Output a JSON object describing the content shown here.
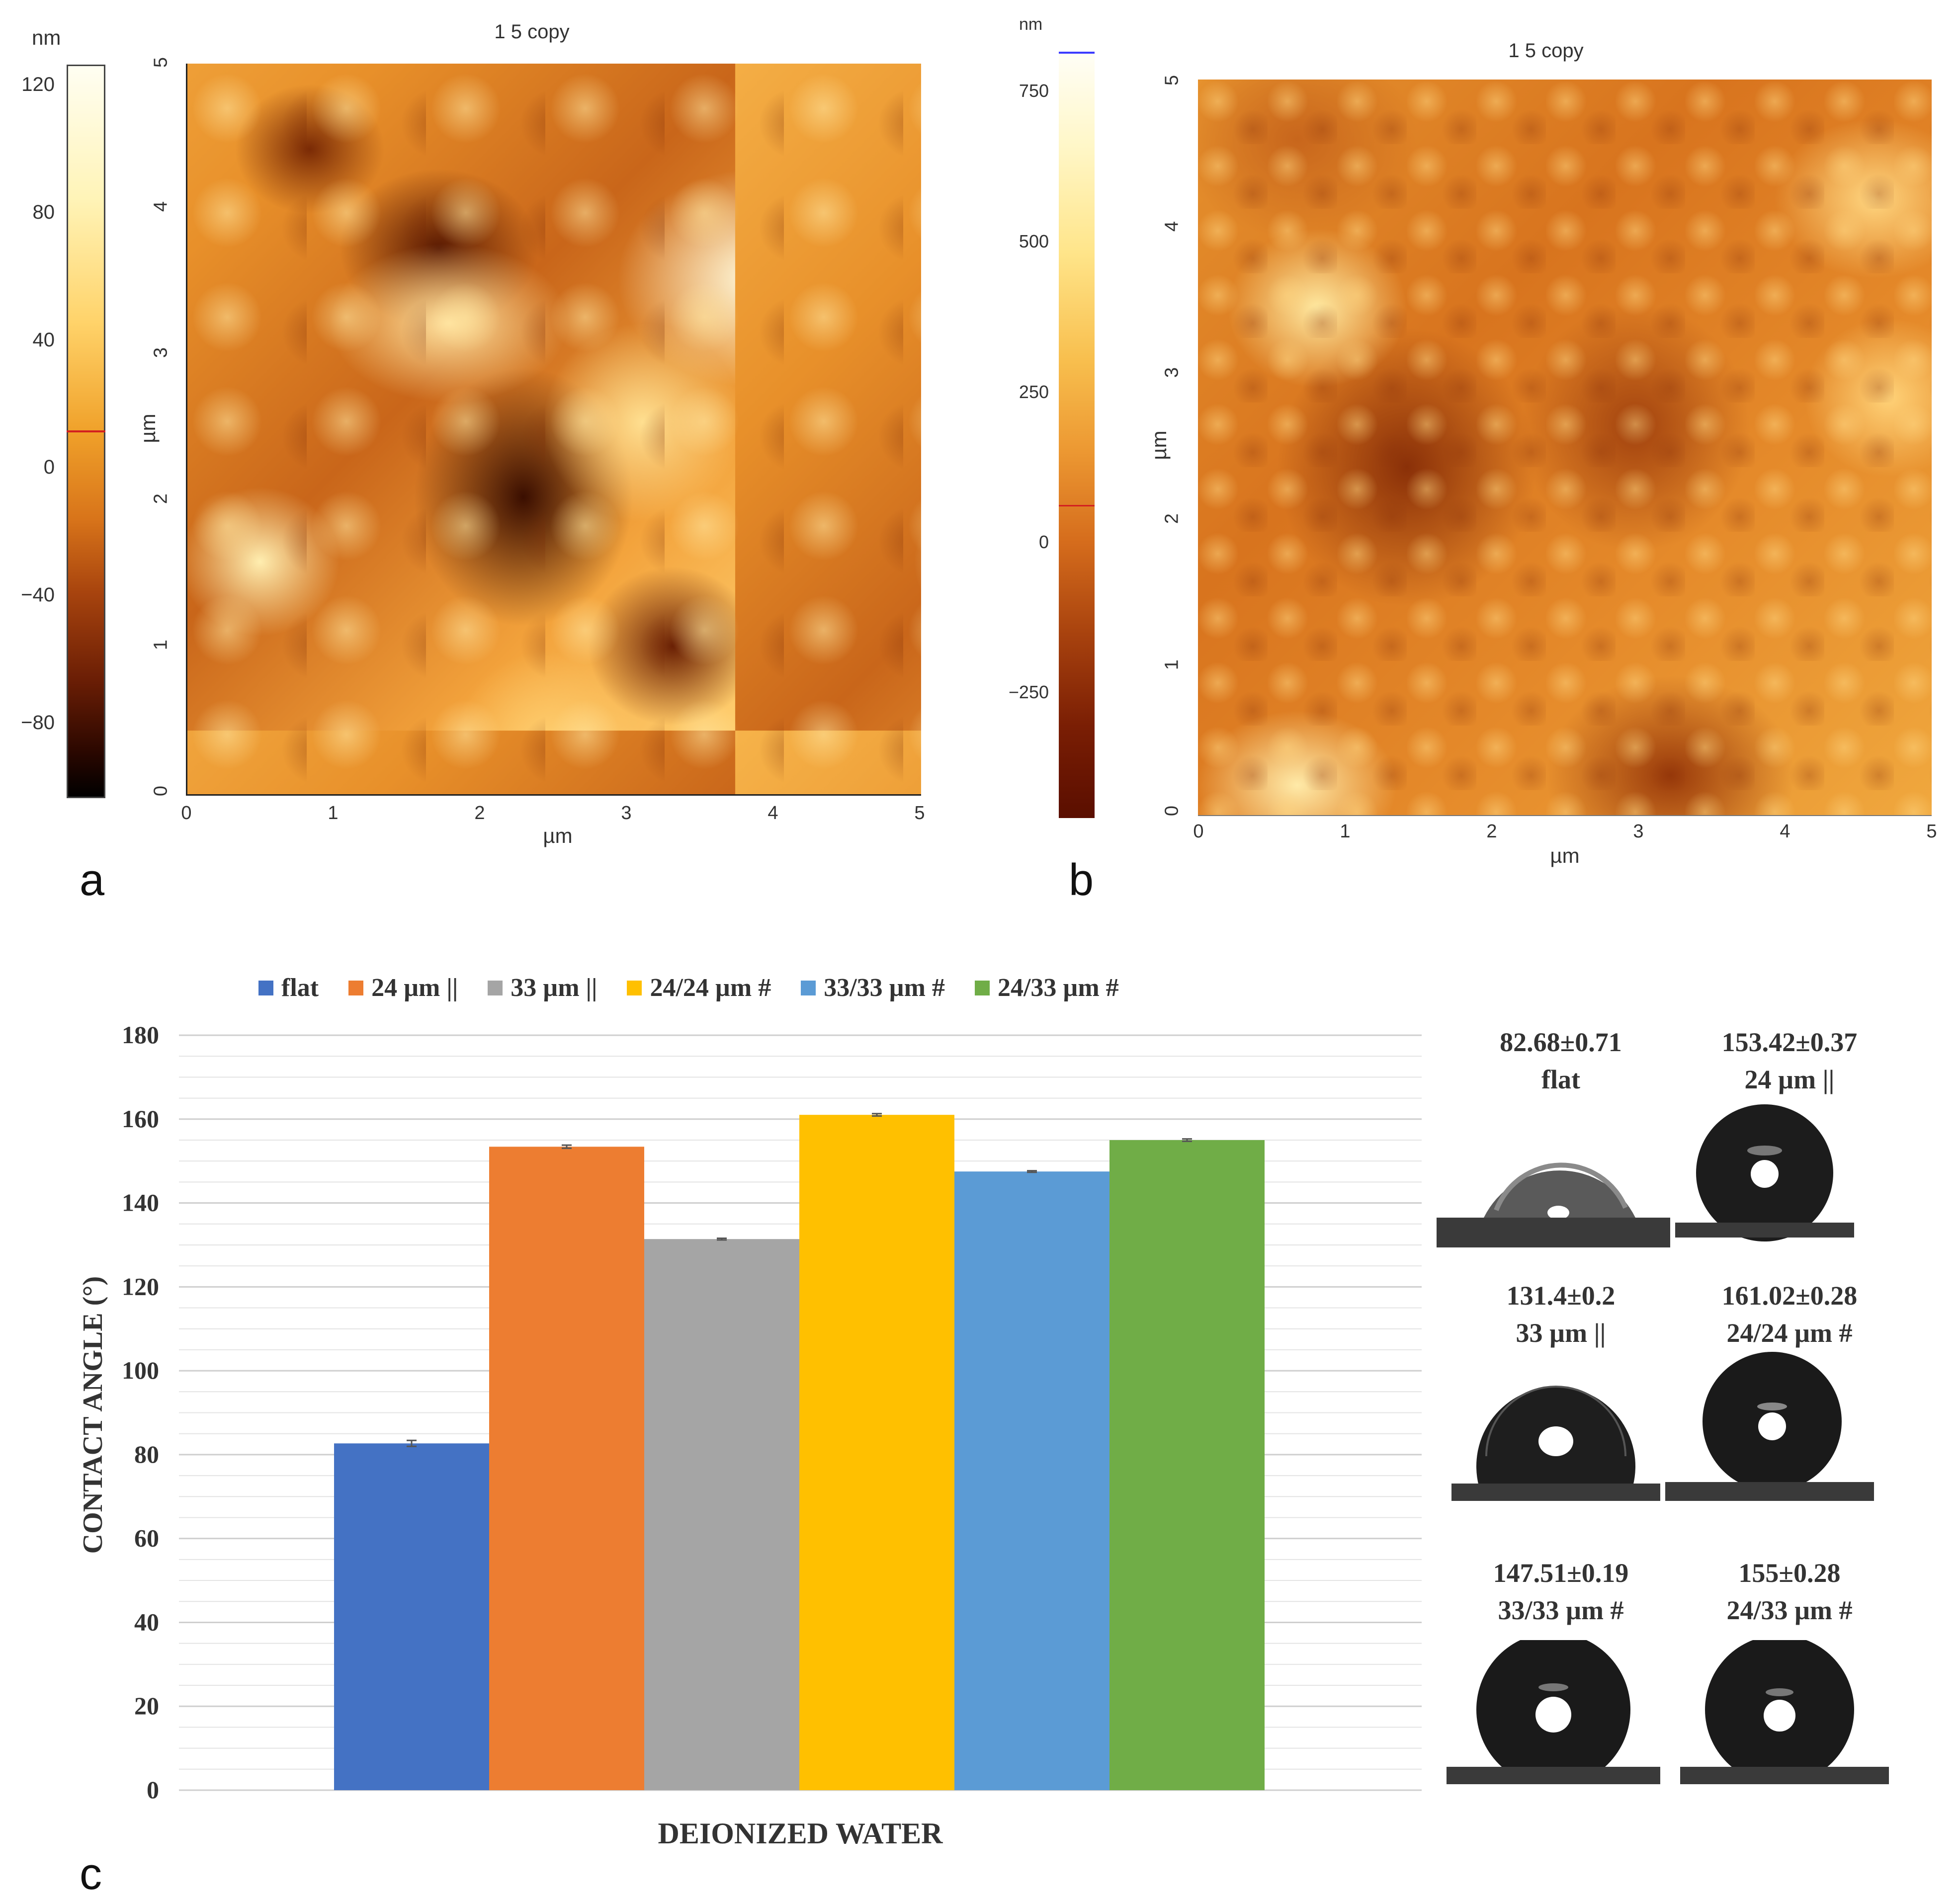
{
  "panels": {
    "a": {
      "letter": "a",
      "title": "1 5 copy",
      "unit_top": "nm",
      "colorbar_ticks": [
        "120",
        "80",
        "40",
        "0",
        "−80"
      ],
      "extra_tick": "−40",
      "x_ticks": [
        "0",
        "1",
        "2",
        "3",
        "4",
        "5"
      ],
      "y_ticks": [
        "0",
        "1",
        "2",
        "3",
        "4",
        "5"
      ],
      "xlabel": "µm",
      "ylabel": "µm",
      "colors": {
        "low": "#1a0500",
        "mid": "#e08a1c",
        "high": "#fffde8"
      }
    },
    "b": {
      "letter": "b",
      "title": "1 5 copy",
      "unit_top": "nm",
      "colorbar_ticks": [
        "750",
        "500",
        "250",
        "0",
        "−250"
      ],
      "x_ticks": [
        "0",
        "1",
        "2",
        "3",
        "4",
        "5"
      ],
      "y_ticks": [
        "0",
        "1",
        "2",
        "3",
        "4",
        "5"
      ],
      "xlabel": "µm",
      "ylabel": "µm"
    },
    "c": {
      "letter": "c"
    }
  },
  "chart_data": {
    "type": "bar",
    "title": "",
    "xlabel": "DEIONIZED WATER",
    "ylabel": "CONTACT ANGLE (°)",
    "ylim": [
      0,
      180
    ],
    "yticks": [
      0,
      20,
      40,
      60,
      80,
      100,
      120,
      140,
      160,
      180
    ],
    "grid": true,
    "legend_position": "top",
    "categories": [
      "DEIONIZED WATER"
    ],
    "series": [
      {
        "name": "flat",
        "values": [
          82.68
        ],
        "error": [
          0.71
        ],
        "color": "#4472c4"
      },
      {
        "name": "24 µm ||",
        "values": [
          153.42
        ],
        "error": [
          0.37
        ],
        "color": "#ed7d31"
      },
      {
        "name": "33 µm ||",
        "values": [
          131.4
        ],
        "error": [
          0.2
        ],
        "color": "#a5a5a5"
      },
      {
        "name": "24/24 µm #",
        "values": [
          161.02
        ],
        "error": [
          0.28
        ],
        "color": "#ffc000"
      },
      {
        "name": "33/33 µm #",
        "values": [
          147.51
        ],
        "error": [
          0.19
        ],
        "color": "#5b9bd5"
      },
      {
        "name": "24/33 µm #",
        "values": [
          155
        ],
        "error": [
          0.28
        ],
        "color": "#70ad47"
      }
    ]
  },
  "droplets": [
    {
      "value": "82.68±0.71",
      "label": "flat"
    },
    {
      "value": "153.42±0.37",
      "label": "24 µm ||"
    },
    {
      "value": "131.4±0.2",
      "label": "33 µm ||"
    },
    {
      "value": "161.02±0.28",
      "label": "24/24 µm #"
    },
    {
      "value": "147.51±0.19",
      "label": "33/33 µm #"
    },
    {
      "value": "155±0.28",
      "label": "24/33 µm #"
    }
  ]
}
